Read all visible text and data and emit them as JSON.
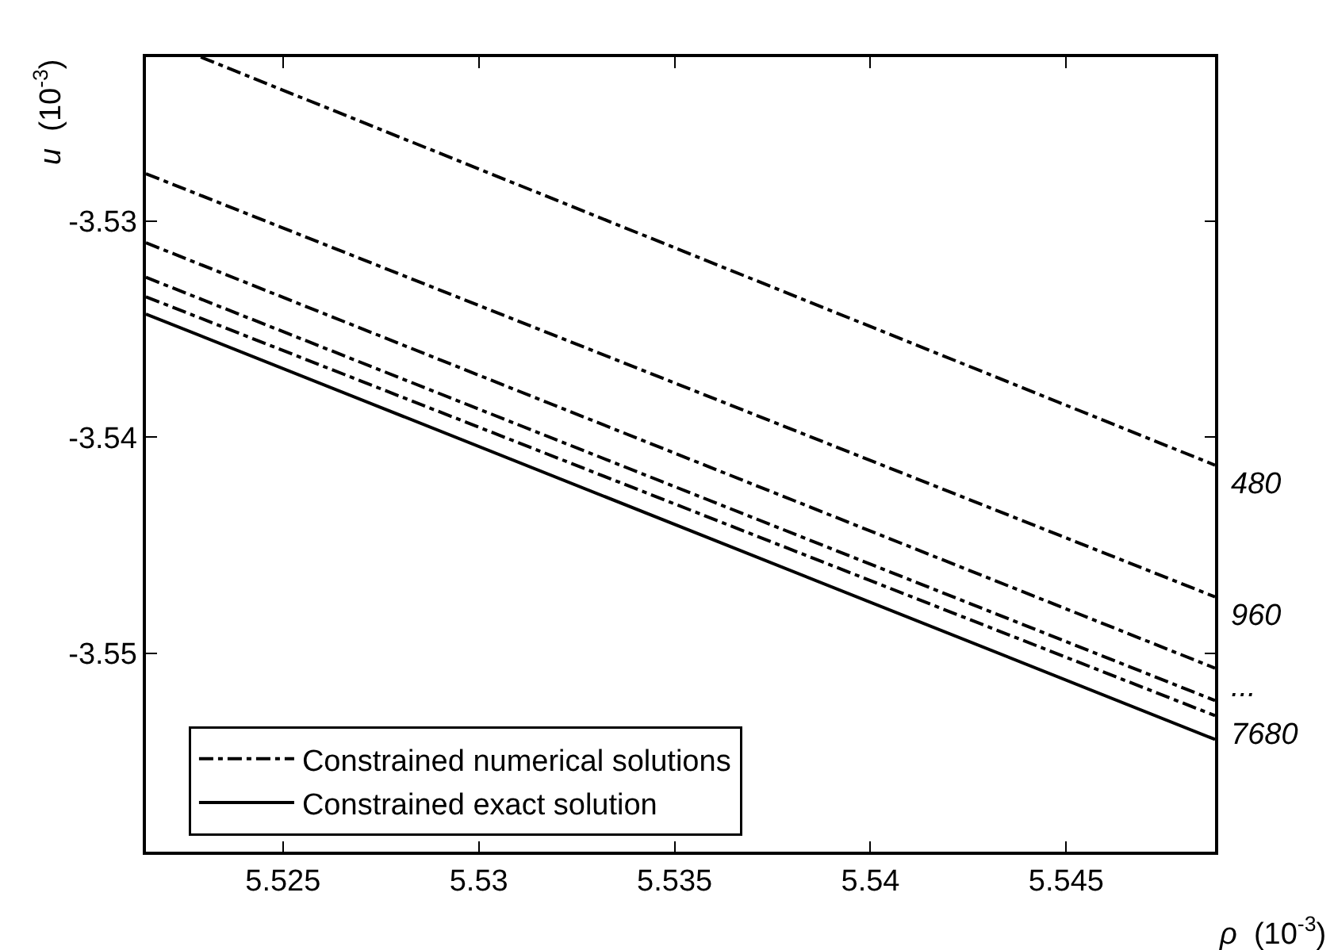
{
  "chart_data": {
    "type": "line",
    "xlabel": "ρ (10$^{-3}$)",
    "ylabel": "u (10$^{-3}$)",
    "xlim": [
      5.5215,
      5.5488
    ],
    "ylim": [
      -3.5592,
      -3.5224
    ],
    "xticks": [
      5.525,
      5.53,
      5.535,
      5.54,
      5.545
    ],
    "yticks": [
      -3.55,
      -3.54,
      -3.53
    ],
    "legend": "bottom left",
    "marker": "none",
    "series": [
      {
        "name": "Constrained numerical solutions",
        "color": "#000000",
        "line_style": "dashdot",
        "x": [
          5.5229,
          5.5488
        ],
        "values": [
          -3.5224,
          -3.5413
        ]
      },
      {
        "color": "#000000",
        "line_style": "dashdot",
        "x": [
          5.5215,
          5.5488
        ],
        "values": [
          -3.5278,
          -3.5474
        ]
      },
      {
        "color": "#000000",
        "line_style": "dashdot",
        "x": [
          5.5215,
          5.5488
        ],
        "values": [
          -3.531,
          -3.5507
        ]
      },
      {
        "color": "#000000",
        "line_style": "dashdot",
        "x": [
          5.5215,
          5.5488
        ],
        "values": [
          -3.5326,
          -3.5522
        ]
      },
      {
        "color": "#000000",
        "line_style": "dashdot",
        "x": [
          5.5215,
          5.5488
        ],
        "values": [
          -3.5335,
          -3.5529
        ]
      },
      {
        "name": "Constrained exact solution",
        "color": "#000000",
        "line_style": "solid",
        "x": [
          5.5215,
          5.5488
        ],
        "values": [
          -3.5343,
          -3.554
        ]
      }
    ],
    "annotations": [
      "480",
      "960",
      "...",
      "7680"
    ]
  }
}
